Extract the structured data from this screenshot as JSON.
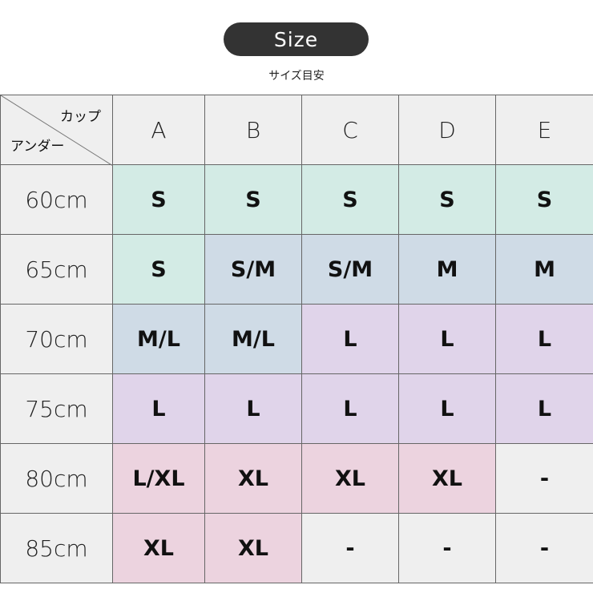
{
  "title": "Size",
  "subtitle": "サイズ目安",
  "corner": {
    "top": "カップ",
    "bottom": "アンダー"
  },
  "columns": [
    "A",
    "B",
    "C",
    "D",
    "E"
  ],
  "colors": {
    "gray": "#efefef",
    "mint": "#d3ebe5",
    "blue": "#cfdbe6",
    "lavender": "#e0d4ea",
    "pink": "#ecd3df"
  },
  "rows": [
    {
      "label": "60cm",
      "cells": [
        {
          "v": "S",
          "c": "mint"
        },
        {
          "v": "S",
          "c": "mint"
        },
        {
          "v": "S",
          "c": "mint"
        },
        {
          "v": "S",
          "c": "mint"
        },
        {
          "v": "S",
          "c": "mint"
        }
      ]
    },
    {
      "label": "65cm",
      "cells": [
        {
          "v": "S",
          "c": "mint"
        },
        {
          "v": "S/M",
          "c": "blue"
        },
        {
          "v": "S/M",
          "c": "blue"
        },
        {
          "v": "M",
          "c": "blue"
        },
        {
          "v": "M",
          "c": "blue"
        }
      ]
    },
    {
      "label": "70cm",
      "cells": [
        {
          "v": "M/L",
          "c": "blue"
        },
        {
          "v": "M/L",
          "c": "blue"
        },
        {
          "v": "L",
          "c": "lavender"
        },
        {
          "v": "L",
          "c": "lavender"
        },
        {
          "v": "L",
          "c": "lavender"
        }
      ]
    },
    {
      "label": "75cm",
      "cells": [
        {
          "v": "L",
          "c": "lavender"
        },
        {
          "v": "L",
          "c": "lavender"
        },
        {
          "v": "L",
          "c": "lavender"
        },
        {
          "v": "L",
          "c": "lavender"
        },
        {
          "v": "L",
          "c": "lavender"
        }
      ]
    },
    {
      "label": "80cm",
      "cells": [
        {
          "v": "L/XL",
          "c": "pink"
        },
        {
          "v": "XL",
          "c": "pink"
        },
        {
          "v": "XL",
          "c": "pink"
        },
        {
          "v": "XL",
          "c": "pink"
        },
        {
          "v": "-",
          "c": "gray"
        }
      ]
    },
    {
      "label": "85cm",
      "cells": [
        {
          "v": "XL",
          "c": "pink"
        },
        {
          "v": "XL",
          "c": "pink"
        },
        {
          "v": "-",
          "c": "gray"
        },
        {
          "v": "-",
          "c": "gray"
        },
        {
          "v": "-",
          "c": "gray"
        }
      ]
    }
  ]
}
